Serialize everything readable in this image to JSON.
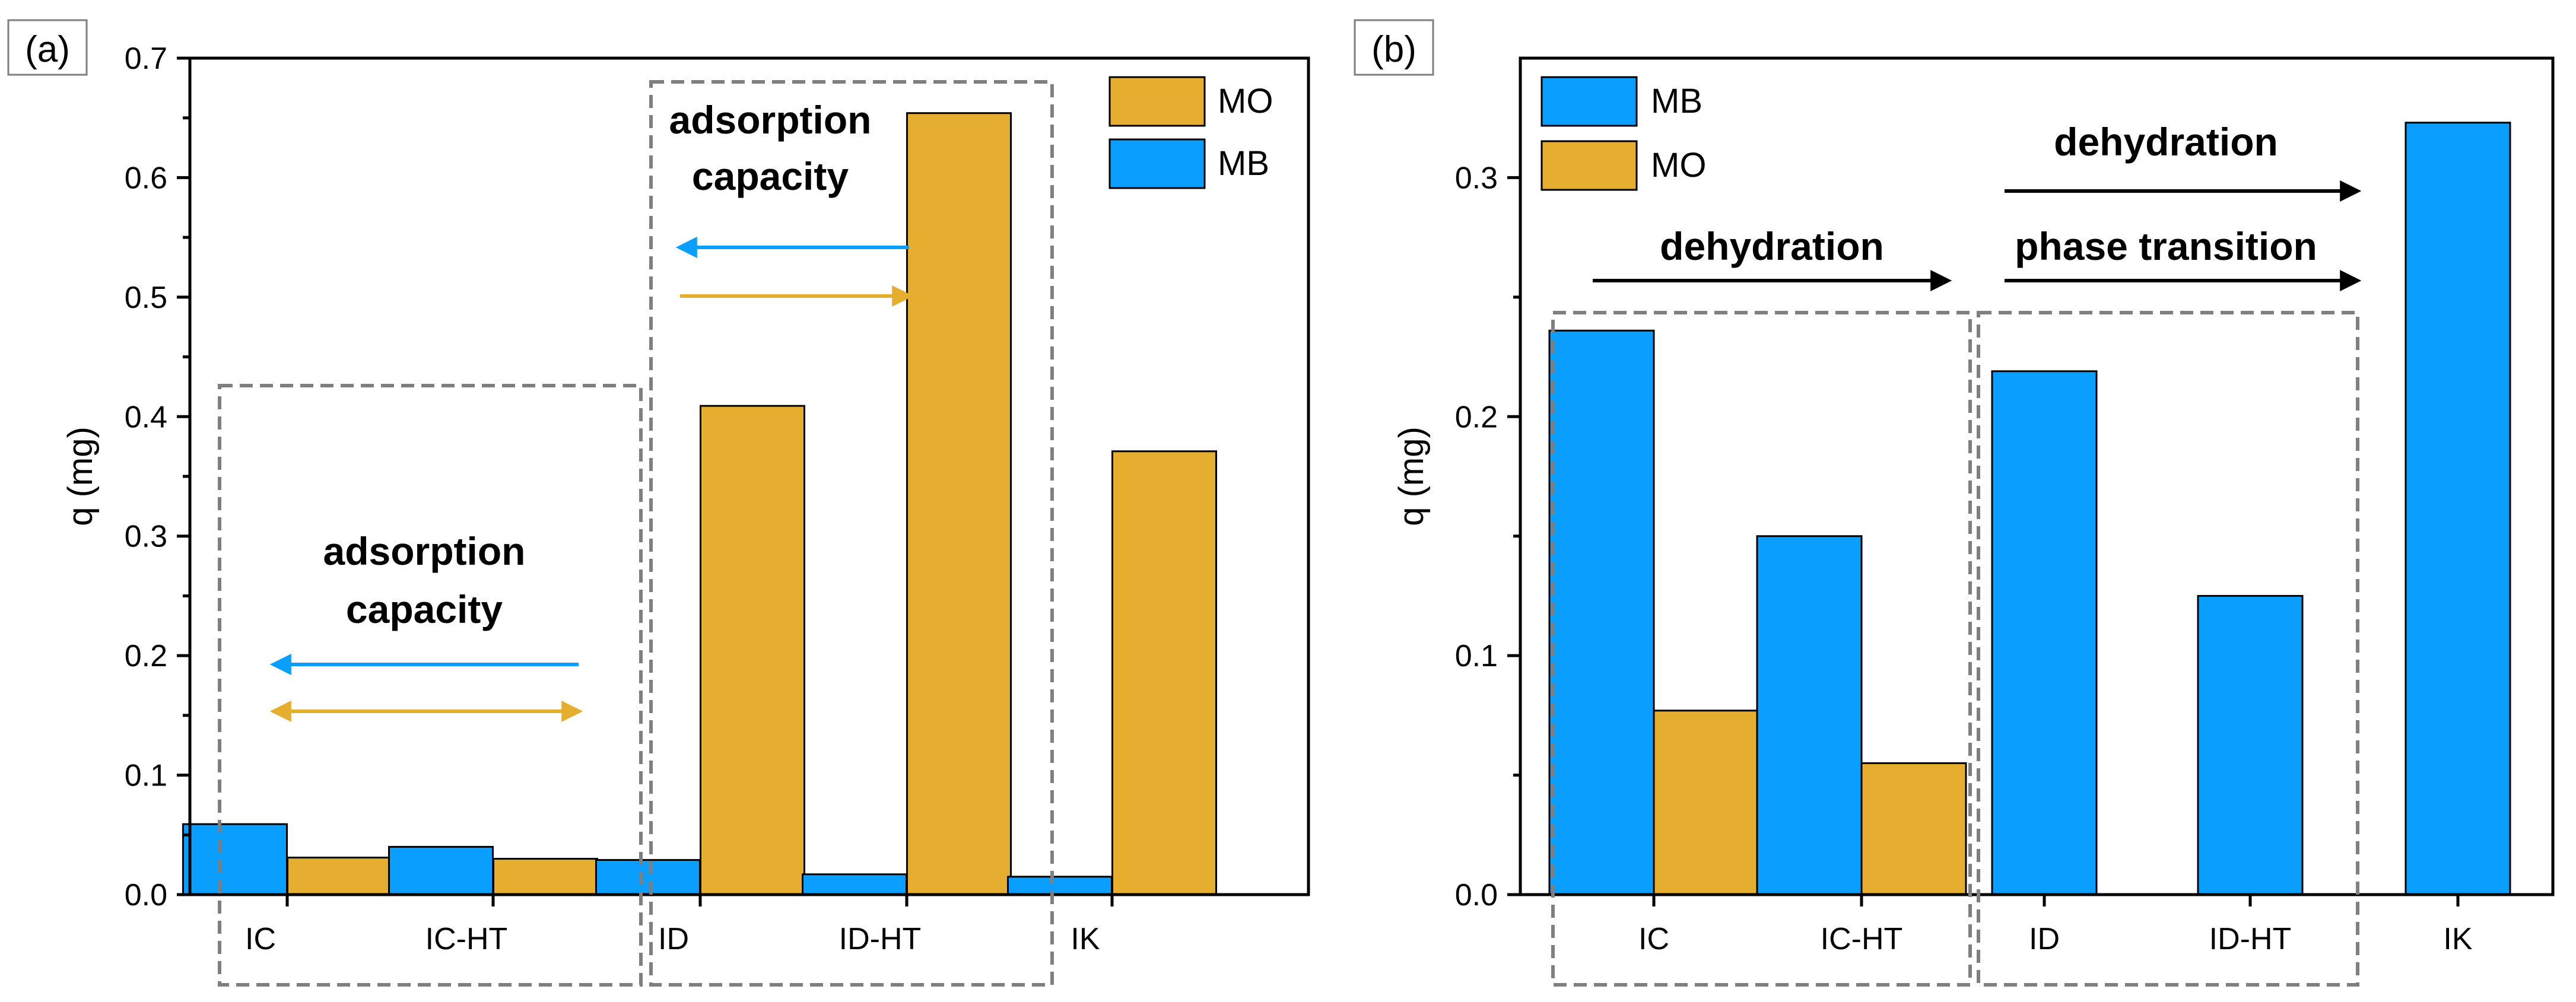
{
  "colors": {
    "MB": "#0a9eff",
    "MO": "#e6ae2f",
    "box": "#7f7f7f",
    "arrow_black": "#000000"
  },
  "chart_data": [
    {
      "type": "bar",
      "panel_label": "(a)",
      "categories": [
        "IC",
        "IC-HT",
        "ID",
        "ID-HT",
        "IK"
      ],
      "series": [
        {
          "name": "MB",
          "values": [
            0.059,
            0.04,
            0.029,
            0.017,
            0.015
          ]
        },
        {
          "name": "MO",
          "values": [
            0.031,
            0.03,
            0.409,
            0.654,
            0.371
          ]
        }
      ],
      "ylabel": "q (mg)",
      "xlabel": "",
      "ylim": [
        0,
        0.7
      ],
      "yticks": [
        "0.0",
        "0.1",
        "0.2",
        "0.3",
        "0.4",
        "0.5",
        "0.6",
        "0.7"
      ],
      "legend": {
        "position": "top-right",
        "order": [
          "MO",
          "MB"
        ]
      },
      "annotations": [
        {
          "line1": "adsorption",
          "line2": "capacity",
          "region": "IC–IC-HT",
          "arrows": [
            "MB-left",
            "MO-double"
          ]
        },
        {
          "line1": "adsorption",
          "line2": "capacity",
          "region": "ID–ID-HT",
          "arrows": [
            "MB-left",
            "MO-right"
          ]
        }
      ]
    },
    {
      "type": "bar",
      "panel_label": "(b)",
      "categories": [
        "IC",
        "IC-HT",
        "ID",
        "ID-HT",
        "IK"
      ],
      "series": [
        {
          "name": "MB",
          "values": [
            0.236,
            0.15,
            0.219,
            0.125,
            0.323
          ]
        },
        {
          "name": "MO",
          "values": [
            0.077,
            0.055,
            null,
            null,
            null
          ]
        }
      ],
      "ylabel": "q (mg)",
      "xlabel": "",
      "ylim": [
        0,
        0.35
      ],
      "yticks": [
        "0.0",
        "0.1",
        "0.2",
        "0.3"
      ],
      "legend": {
        "position": "top-left",
        "order": [
          "MB",
          "MO"
        ]
      },
      "annotations": [
        {
          "text": "dehydration",
          "region": "IC–IC-HT"
        },
        {
          "text": "phase transition",
          "region": "ID–ID-HT"
        },
        {
          "text": "dehydration",
          "region": "ID–IK"
        }
      ]
    }
  ]
}
